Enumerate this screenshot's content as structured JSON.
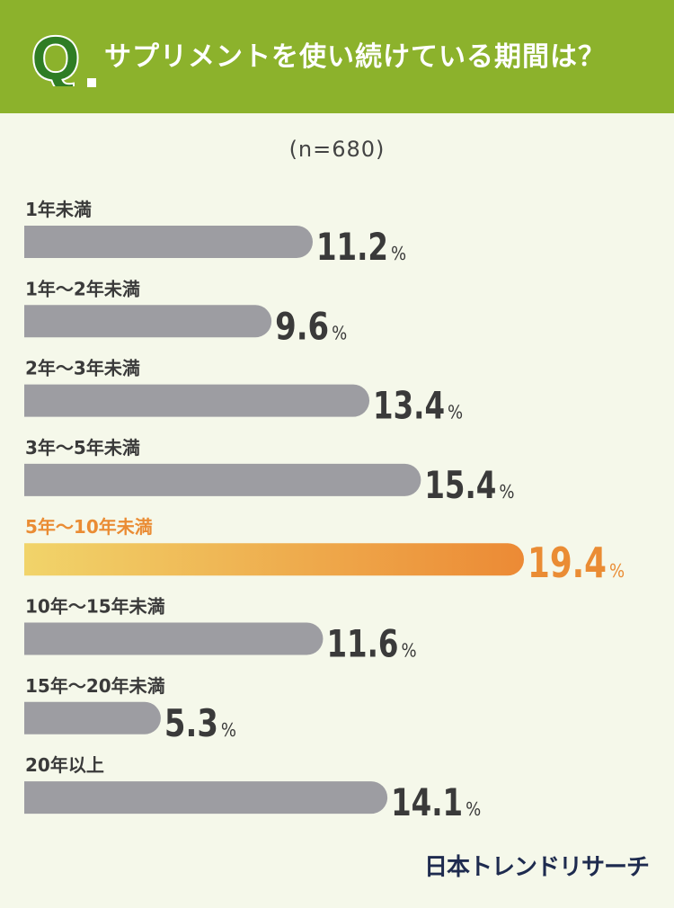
{
  "header": {
    "q_mark": "Q",
    "question": "サプリメントを使い続けている期間は？"
  },
  "sample_note": "(n=680)",
  "chart_data": {
    "type": "bar",
    "orientation": "horizontal",
    "title": "サプリメントを使い続けている期間は？",
    "categories": [
      "1年未満",
      "1年〜2年未満",
      "2年〜3年未満",
      "3年〜5年未満",
      "5年〜10年未満",
      "10年〜15年未満",
      "15年〜20年未満",
      "20年以上"
    ],
    "values": [
      11.2,
      9.6,
      13.4,
      15.4,
      19.4,
      11.6,
      5.3,
      14.1
    ],
    "value_labels": [
      "11.2",
      "9.6",
      "13.4",
      "15.4",
      "19.4",
      "11.6",
      "5.3",
      "14.1"
    ],
    "unit": "%",
    "highlight_category": "5年〜10年未満",
    "colors": {
      "bar": "#9d9da2",
      "highlight_start": "#f1d46a",
      "highlight_end": "#ec8a35",
      "highlight_text": "#ea8c34",
      "text": "#3a3a3a"
    }
  },
  "colors": {
    "header": "#8cb22c",
    "background": "#f5f8ea",
    "logo": "#1e2b4f"
  },
  "logo": "日本トレンドリサーチ"
}
